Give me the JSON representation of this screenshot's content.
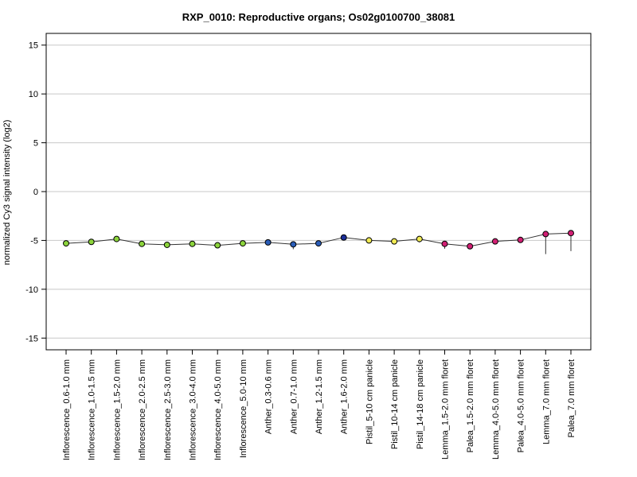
{
  "chart_data": {
    "type": "line",
    "title": "RXP_0010: Reproductive organs; Os02g0100700_38081",
    "ylabel": "normalized Cy3 signal intensity (log2)",
    "xlabel": "",
    "ylim": [
      -16.2,
      16.2
    ],
    "yticks": [
      -15,
      -10,
      -5,
      0,
      5,
      10,
      15
    ],
    "grid": true,
    "categories": [
      "Inflorescence_0.6-1.0 mm",
      "Inflorescence_1.0-1.5 mm",
      "Inflorescence_1.5-2.0 mm",
      "Inflorescence_2.0-2.5 mm",
      "Inflorescence_2.5-3.0 mm",
      "Inflorescence_3.0-4.0 mm",
      "Inflorescence_4.0-5.0 mm",
      "Inflorescence_5.0-10 mm",
      "Anther_0.3-0.6 mm",
      "Anther_0.7-1.0 mm",
      "Anther_1.2-1.5 mm",
      "Anther_1.6-2.0 mm",
      "Pistil_5-10 cm panicle",
      "Pistil_10-14 cm panicle",
      "Pistil_14-18 cm panicle",
      "Lemma_1.5-2.0 mm floret",
      "Palea_1.5-2.0 mm floret",
      "Lemma_4.0-5.0 mm floret",
      "Palea_4.0-5.0 mm floret",
      "Lemma_7.0 mm floret",
      "Palea_7.0 mm floret"
    ],
    "values": [
      -5.3,
      -5.15,
      -4.85,
      -5.35,
      -5.45,
      -5.35,
      -5.5,
      -5.3,
      -5.2,
      -5.4,
      -5.3,
      -4.7,
      -5.0,
      -5.1,
      -4.85,
      -5.35,
      -5.6,
      -5.1,
      -4.95,
      -4.35,
      -4.25
    ],
    "err_low": [
      -5.4,
      -5.3,
      -5.0,
      -5.45,
      -5.55,
      -5.45,
      -5.6,
      -5.4,
      -5.3,
      -5.9,
      -5.6,
      -4.8,
      -5.3,
      -5.2,
      -5.2,
      -5.85,
      -5.9,
      -5.4,
      -5.1,
      -6.4,
      -6.1
    ],
    "err_high": [
      -5.2,
      -5.0,
      -4.7,
      -5.25,
      -5.35,
      -5.25,
      -5.4,
      -5.2,
      -5.1,
      -5.1,
      -5.0,
      -4.6,
      -4.8,
      -5.0,
      -4.6,
      -5.1,
      -5.3,
      -4.8,
      -4.8,
      -4.2,
      -4.1
    ],
    "colors": [
      "#8cd43c",
      "#8cd43c",
      "#8cd43c",
      "#8cd43c",
      "#8cd43c",
      "#8cd43c",
      "#8cd43c",
      "#8cd43c",
      "#2a5db8",
      "#2a5db8",
      "#2a5db8",
      "#1c2f9a",
      "#f2ec55",
      "#f2ec55",
      "#f2ec55",
      "#d11f73",
      "#d11f73",
      "#d11f73",
      "#d11f73",
      "#d11f73",
      "#d11f73"
    ]
  }
}
